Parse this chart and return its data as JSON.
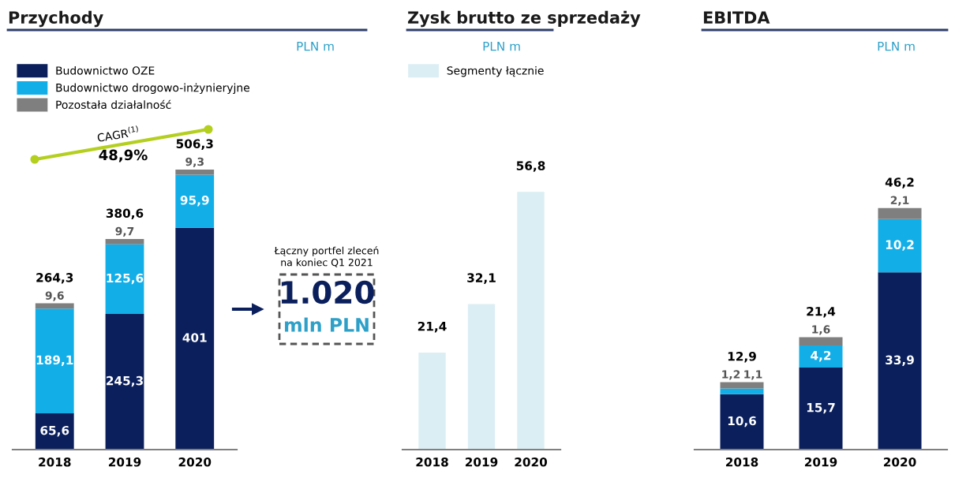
{
  "chart_data": [
    {
      "type": "bar",
      "title": "Przychody",
      "stacked": true,
      "categories": [
        "2018",
        "2019",
        "2020"
      ],
      "legend": "top left",
      "tick_labels": "x",
      "grid": false,
      "series": [
        {
          "name": "Budownictwo OZE",
          "color": "#0a1f5c",
          "values": [
            65.6,
            245.3,
            401
          ],
          "value_labels": [
            "65,6",
            "245,3",
            "401"
          ]
        },
        {
          "name": "Budownictwo drogowo-inżynieryjne",
          "color": "#12aee8",
          "values": [
            189.1,
            125.6,
            95.9
          ],
          "value_labels": [
            "189,1",
            "125,6",
            "95,9"
          ]
        },
        {
          "name": "Pozostała działalność",
          "color": "#7f7f7f",
          "values": [
            9.6,
            9.7,
            9.3
          ],
          "value_labels": [
            "9,6",
            "9,7",
            "9,3"
          ]
        }
      ],
      "totals": [
        "264,3",
        "380,6",
        "506,3"
      ],
      "annotations": [
        "PLN m",
        "CAGR$^{(1)}$",
        "48,9%",
        "Łączny portfel zleceń\nna koniec Q1 2021",
        "1.020",
        "mln PLN"
      ]
    },
    {
      "type": "bar",
      "title": "Zysk brutto ze sprzedaży",
      "categories": [
        "2018",
        "2019",
        "2020"
      ],
      "legend": "top left",
      "tick_labels": "x",
      "grid": false,
      "series": [
        {
          "name": "Segmenty łącznie",
          "color": "#dbeef4",
          "values": [
            21.4,
            32.1,
            56.8
          ],
          "value_labels": [
            "21,4",
            "32,1",
            "56,8"
          ]
        }
      ],
      "annotations": [
        "PLN m"
      ]
    },
    {
      "type": "bar",
      "title": "EBITDA",
      "stacked": true,
      "categories": [
        "2018",
        "2019",
        "2020"
      ],
      "tick_labels": "x",
      "grid": false,
      "series": [
        {
          "color": "#0a1f5c",
          "values": [
            10.6,
            15.7,
            33.9
          ],
          "value_labels": [
            "10,6",
            "15,7",
            "33,9"
          ]
        },
        {
          "color": "#12aee8",
          "values": [
            1.1,
            4.2,
            10.2
          ],
          "value_labels": [
            "1,1",
            "4,2",
            "10,2"
          ]
        },
        {
          "color": "#7f7f7f",
          "values": [
            1.2,
            1.6,
            2.1
          ],
          "value_labels": [
            "1,2",
            "1,6",
            "2,1"
          ]
        }
      ],
      "totals": [
        "12,9",
        "21,4",
        "46,2"
      ],
      "annotations": [
        "PLN m"
      ]
    }
  ]
}
